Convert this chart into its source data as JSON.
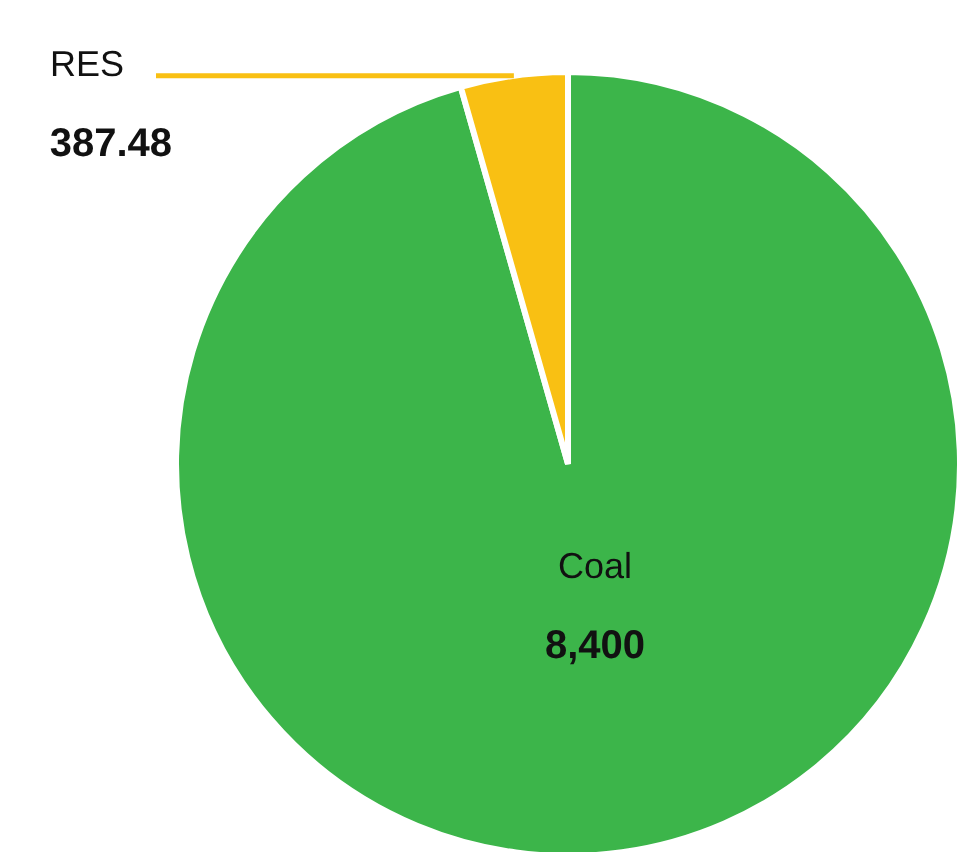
{
  "chart_data": {
    "type": "pie",
    "categories": [
      "Coal",
      "RES"
    ],
    "values": [
      8400,
      387.48
    ],
    "colors": [
      "#3cb54a",
      "#f9c013"
    ],
    "value_labels": [
      "8,400",
      "387.48"
    ]
  }
}
